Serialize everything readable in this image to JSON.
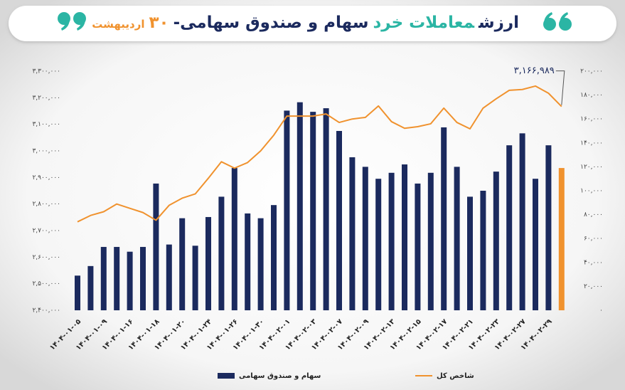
{
  "chart_data": {
    "type": "combo",
    "title_parts": [
      {
        "text": "ارزش",
        "color": "#1b2a5e"
      },
      {
        "text": "معاملات خرد",
        "color": "#2bb5a4"
      },
      {
        "text": "سهام و صندوق سهامی-",
        "color": "#1b2a5e"
      },
      {
        "text": "۳۰",
        "color": "#f0922e"
      },
      {
        "text": "اردیبهشت",
        "color": "#f0922e"
      }
    ],
    "categories": [
      "۱۴۰۴-۰۱-۰۵",
      null,
      "۱۴۰۴-۰۱-۰۹",
      null,
      "۱۴۰۴-۰۱-۱۶",
      null,
      "۱۴۰۴-۰۱-۱۸",
      null,
      "۱۴۰۴-۰۱-۲۰",
      null,
      "۱۴۰۴-۰۱-۲۴",
      null,
      "۱۴۰۴-۰۱-۲۶",
      null,
      "۱۴۰۴-۰۱-۳۰",
      null,
      "۱۴۰۴-۰۲-۰۱",
      null,
      "۱۴۰۴-۰۲-۰۳",
      null,
      "۱۴۰۴-۰۲-۰۷",
      null,
      "۱۴۰۴-۰۲-۰۹",
      null,
      "۱۴۰۴-۰۲-۱۳",
      null,
      "۱۴۰۴-۰۲-۱۵",
      null,
      "۱۴۰۴-۰۲-۱۷",
      null,
      "۱۴۰۴-۰۲-۲۱",
      null,
      "۱۴۰۴-۰۲-۲۳",
      null,
      "۱۴۰۴-۰۲-۲۷",
      null,
      "۱۴۰۴-۰۲-۲۹",
      null
    ],
    "series": [
      {
        "name": "سهام و صندوق سهامی",
        "type": "bar",
        "axis": "y2",
        "color": "#1b2a5e",
        "colors": [
          "#1b2a5e",
          "#1b2a5e",
          "#1b2a5e",
          "#1b2a5e",
          "#1b2a5e",
          "#1b2a5e",
          "#1b2a5e",
          "#1b2a5e",
          "#1b2a5e",
          "#1b2a5e",
          "#1b2a5e",
          "#1b2a5e",
          "#1b2a5e",
          "#1b2a5e",
          "#1b2a5e",
          "#1b2a5e",
          "#1b2a5e",
          "#1b2a5e",
          "#1b2a5e",
          "#1b2a5e",
          "#1b2a5e",
          "#1b2a5e",
          "#1b2a5e",
          "#1b2a5e",
          "#1b2a5e",
          "#1b2a5e",
          "#1b2a5e",
          "#1b2a5e",
          "#1b2a5e",
          "#1b2a5e",
          "#1b2a5e",
          "#1b2a5e",
          "#1b2a5e",
          "#1b2a5e",
          "#1b2a5e",
          "#1b2a5e",
          "#1b2a5e",
          "#f0922e"
        ],
        "values": [
          29000,
          37000,
          53000,
          53000,
          49000,
          53000,
          106000,
          55000,
          77000,
          54000,
          78000,
          95000,
          119000,
          81000,
          77000,
          88000,
          167000,
          174000,
          166000,
          169000,
          150000,
          128000,
          120000,
          110000,
          115000,
          122000,
          106000,
          115000,
          153000,
          120000,
          95000,
          100000,
          116000,
          138000,
          148000,
          110000,
          138000,
          119000
        ]
      },
      {
        "name": "شاخص کل",
        "type": "line",
        "axis": "y",
        "color": "#f0922e",
        "values": [
          2733000,
          2757000,
          2771000,
          2800000,
          2784000,
          2768000,
          2739000,
          2795000,
          2822000,
          2838000,
          2897000,
          2959000,
          2935000,
          2956000,
          3000000,
          3059000,
          3131000,
          3131000,
          3131000,
          3139000,
          3107000,
          3120000,
          3126000,
          3169000,
          3110000,
          3085000,
          3091000,
          3102000,
          3161000,
          3107000,
          3083000,
          3161000,
          3196000,
          3228000,
          3231000,
          3244000,
          3217000,
          3166989
        ],
        "value_labels": [
          null,
          null,
          null,
          null,
          null,
          null,
          null,
          null,
          null,
          null,
          null,
          null,
          null,
          null,
          null,
          null,
          null,
          null,
          null,
          null,
          null,
          null,
          null,
          null,
          null,
          null,
          null,
          null,
          null,
          null,
          null,
          null,
          null,
          null,
          null,
          null,
          null,
          "۳,۱۶۶,۹۸۹"
        ]
      }
    ],
    "ylim": [
      2400000,
      3300000
    ],
    "yticks": [
      {
        "value": 2400000,
        "label": "۲,۴۰۰,۰۰۰"
      },
      {
        "value": 2500000,
        "label": "۲,۵۰۰,۰۰۰"
      },
      {
        "value": 2600000,
        "label": "۲,۶۰۰,۰۰۰"
      },
      {
        "value": 2700000,
        "label": "۲,۷۰۰,۰۰۰"
      },
      {
        "value": 2800000,
        "label": "۲,۸۰۰,۰۰۰"
      },
      {
        "value": 2900000,
        "label": "۲,۹۰۰,۰۰۰"
      },
      {
        "value": 3000000,
        "label": "۳,۰۰۰,۰۰۰"
      },
      {
        "value": 3100000,
        "label": "۳,۱۰۰,۰۰۰"
      },
      {
        "value": 3200000,
        "label": "۳,۲۰۰,۰۰۰"
      },
      {
        "value": 3300000,
        "label": "۳,۳۰۰,۰۰۰"
      }
    ],
    "y2lim": [
      0,
      200000
    ],
    "y2ticks": [
      {
        "value": 0,
        "label": "۰"
      },
      {
        "value": 20000,
        "label": "۲۰,۰۰۰"
      },
      {
        "value": 40000,
        "label": "۴۰,۰۰۰"
      },
      {
        "value": 60000,
        "label": "۶۰,۰۰۰"
      },
      {
        "value": 80000,
        "label": "۸۰,۰۰۰"
      },
      {
        "value": 100000,
        "label": "۱۰۰,۰۰۰"
      },
      {
        "value": 120000,
        "label": "۱۲۰,۰۰۰"
      },
      {
        "value": 140000,
        "label": "۱۴۰,۰۰۰"
      },
      {
        "value": 160000,
        "label": "۱۶۰,۰۰۰"
      },
      {
        "value": 180000,
        "label": "۱۸۰,۰۰۰"
      },
      {
        "value": 200000,
        "label": "۲۰۰,۰۰۰"
      }
    ],
    "grid": false
  }
}
